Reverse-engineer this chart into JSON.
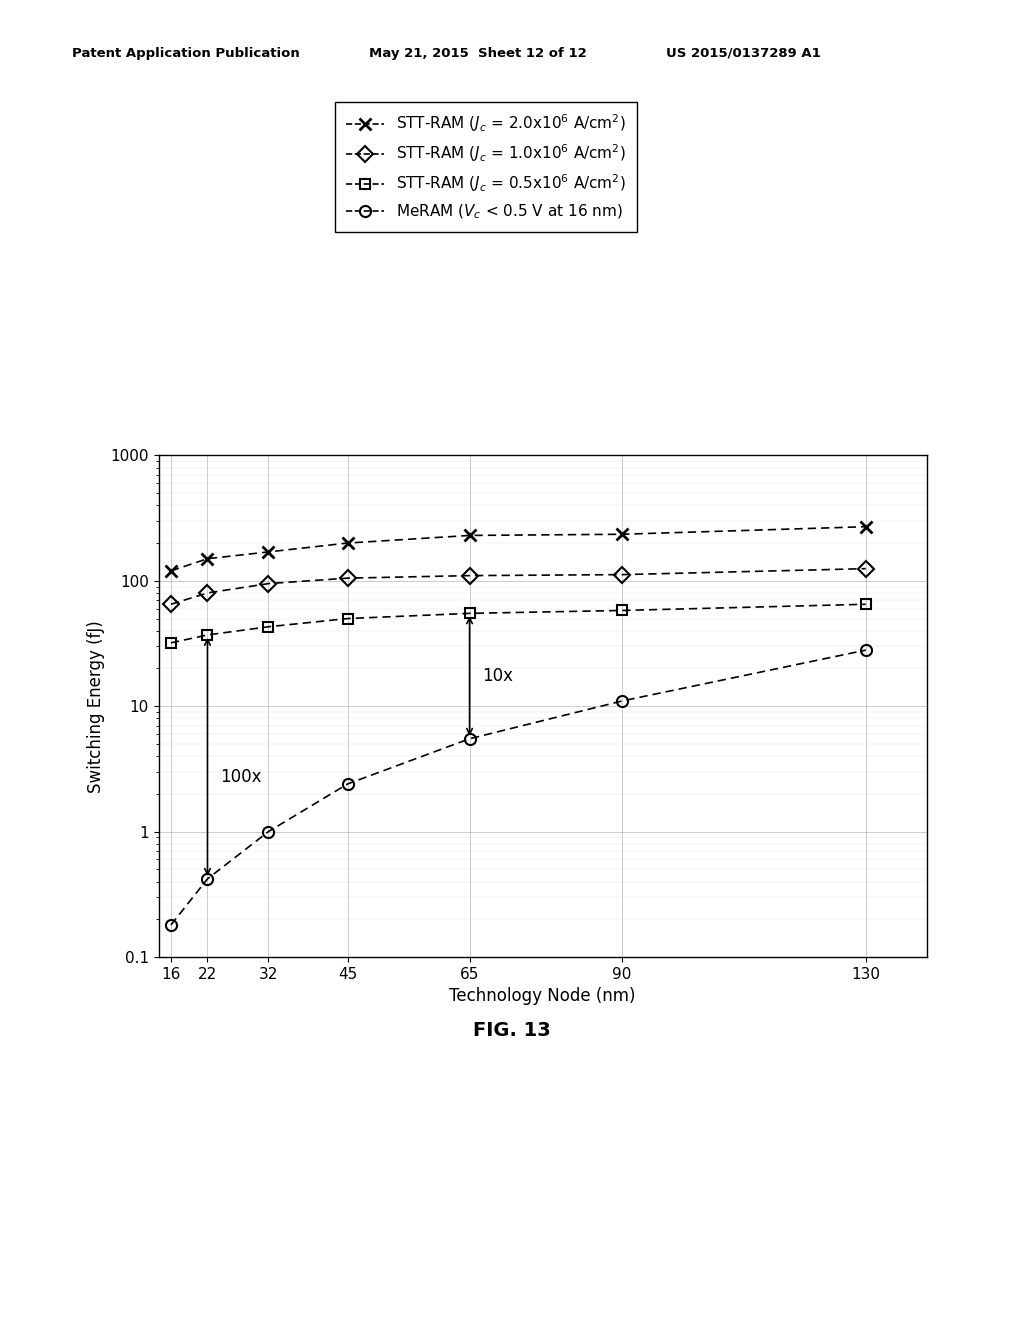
{
  "header_left": "Patent Application Publication",
  "header_mid": "May 21, 2015  Sheet 12 of 12",
  "header_right": "US 2015/0137289 A1",
  "fig_label": "FIG. 13",
  "xlabel": "Technology Node (nm)",
  "ylabel": "Switching Energy (fJ)",
  "x_nodes": [
    16,
    22,
    32,
    45,
    65,
    90,
    130
  ],
  "stt_2e6": [
    120,
    150,
    170,
    200,
    230,
    235,
    270
  ],
  "stt_1e6": [
    65,
    80,
    95,
    105,
    110,
    112,
    125
  ],
  "stt_05e6": [
    32,
    37,
    43,
    50,
    55,
    58,
    65
  ],
  "meram": [
    0.18,
    0.42,
    1.0,
    2.4,
    5.5,
    11,
    28
  ],
  "annotation_100x": "100x",
  "annotation_10x": "10x",
  "ylim": [
    0.1,
    1000
  ],
  "background": "#ffffff",
  "line_color": "#000000"
}
